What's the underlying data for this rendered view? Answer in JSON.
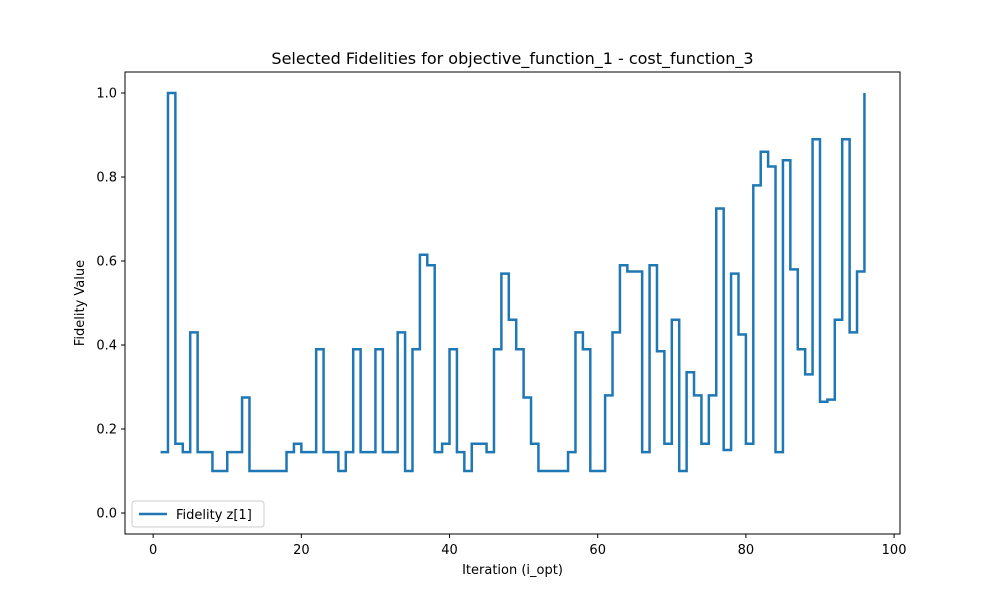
{
  "chart_data": {
    "type": "line",
    "drawstyle": "steps-post",
    "title": "Selected Fidelities for objective_function_1 - cost_function_3",
    "xlabel": "Iteration (i_opt)",
    "ylabel": "Fidelity Value",
    "xlim": [
      -3.8,
      100.8
    ],
    "ylim": [
      -0.05,
      1.05
    ],
    "xticks": [
      0,
      20,
      40,
      60,
      80,
      100
    ],
    "yticks": [
      0.0,
      0.2,
      0.4,
      0.6,
      0.8,
      1.0
    ],
    "xtick_labels": [
      "0",
      "20",
      "40",
      "60",
      "80",
      "100"
    ],
    "ytick_labels": [
      "0.0",
      "0.2",
      "0.4",
      "0.6",
      "0.8",
      "1.0"
    ],
    "grid": false,
    "legend_position": "lower-left",
    "series": [
      {
        "name": "Fidelity z[1]",
        "color": "#1f77b4",
        "x": [
          1,
          2,
          3,
          4,
          5,
          6,
          7,
          8,
          9,
          10,
          11,
          12,
          13,
          14,
          15,
          16,
          17,
          18,
          19,
          20,
          21,
          22,
          23,
          24,
          25,
          26,
          27,
          28,
          29,
          30,
          31,
          32,
          33,
          34,
          35,
          36,
          37,
          38,
          39,
          40,
          41,
          42,
          43,
          44,
          45,
          46,
          47,
          48,
          49,
          50,
          51,
          52,
          53,
          54,
          55,
          56,
          57,
          58,
          59,
          60,
          61,
          62,
          63,
          64,
          65,
          66,
          67,
          68,
          69,
          70,
          71,
          72,
          73,
          74,
          75,
          76,
          77,
          78,
          79,
          80,
          81,
          82,
          83,
          84,
          85,
          86,
          87,
          88,
          89,
          90,
          91,
          92,
          93,
          94,
          95,
          96
        ],
        "y": [
          0.145,
          1.0,
          0.165,
          0.145,
          0.43,
          0.145,
          0.145,
          0.1,
          0.1,
          0.145,
          0.145,
          0.275,
          0.1,
          0.1,
          0.1,
          0.1,
          0.1,
          0.145,
          0.165,
          0.145,
          0.145,
          0.39,
          0.145,
          0.145,
          0.1,
          0.145,
          0.39,
          0.145,
          0.145,
          0.39,
          0.145,
          0.145,
          0.43,
          0.1,
          0.39,
          0.615,
          0.59,
          0.145,
          0.165,
          0.39,
          0.145,
          0.1,
          0.165,
          0.165,
          0.145,
          0.39,
          0.57,
          0.46,
          0.39,
          0.275,
          0.165,
          0.1,
          0.1,
          0.1,
          0.1,
          0.145,
          0.43,
          0.39,
          0.1,
          0.1,
          0.28,
          0.43,
          0.59,
          0.575,
          0.575,
          0.145,
          0.59,
          0.385,
          0.165,
          0.46,
          0.1,
          0.335,
          0.28,
          0.165,
          0.28,
          0.725,
          0.15,
          0.57,
          0.425,
          0.165,
          0.78,
          0.86,
          0.825,
          0.145,
          0.84,
          0.58,
          0.39,
          0.33,
          0.89,
          0.265,
          0.27,
          0.46,
          0.89,
          0.43,
          0.575,
          1.0
        ]
      }
    ]
  }
}
